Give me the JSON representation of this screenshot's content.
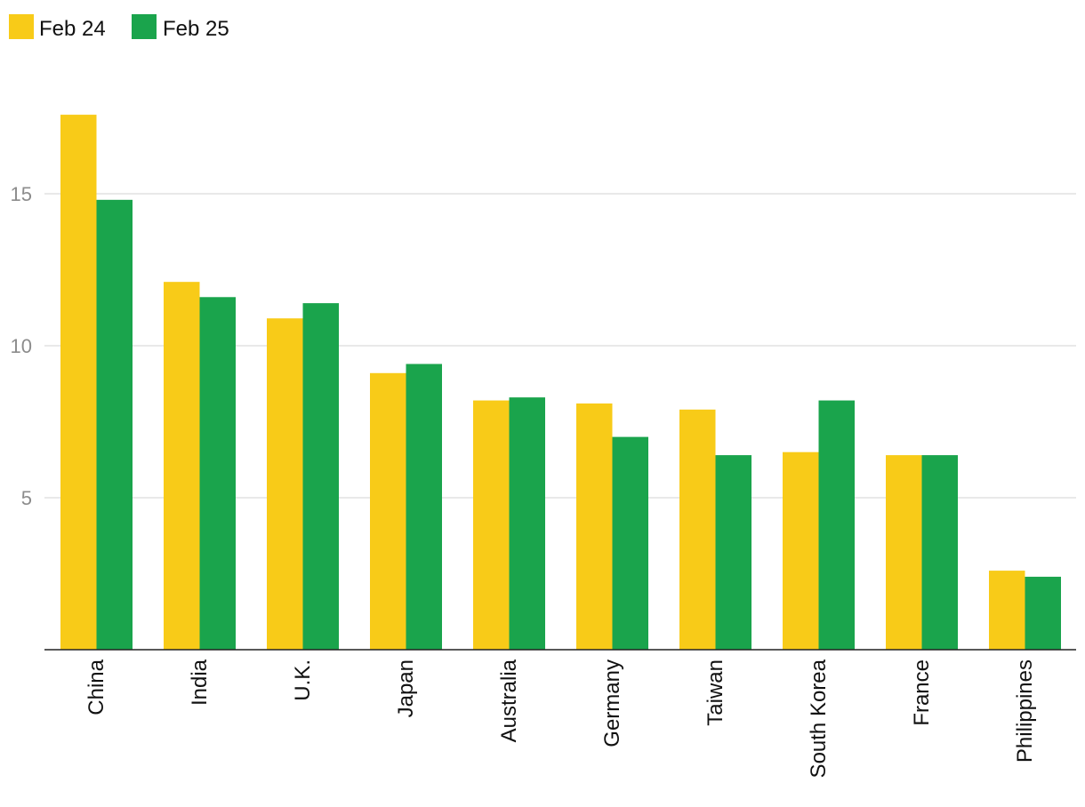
{
  "chart_data": {
    "type": "bar",
    "title": "",
    "xlabel": "",
    "ylabel": "",
    "categories": [
      "China",
      "India",
      "U.K.",
      "Japan",
      "Australia",
      "Germany",
      "Taiwan",
      "South Korea",
      "France",
      "Philippines"
    ],
    "series": [
      {
        "name": "Feb 24",
        "color": "#f8cb18",
        "values": [
          17.6,
          12.1,
          10.9,
          9.1,
          8.2,
          8.1,
          7.9,
          6.5,
          6.4,
          2.6
        ]
      },
      {
        "name": "Feb 25",
        "color": "#1aa44c",
        "values": [
          14.8,
          11.6,
          11.4,
          9.4,
          8.3,
          7.0,
          6.4,
          8.2,
          6.4,
          2.4
        ]
      }
    ],
    "ylim": [
      0,
      20
    ],
    "yticks": [
      5,
      10,
      15
    ],
    "grid": true,
    "legend_position": "top-left"
  }
}
